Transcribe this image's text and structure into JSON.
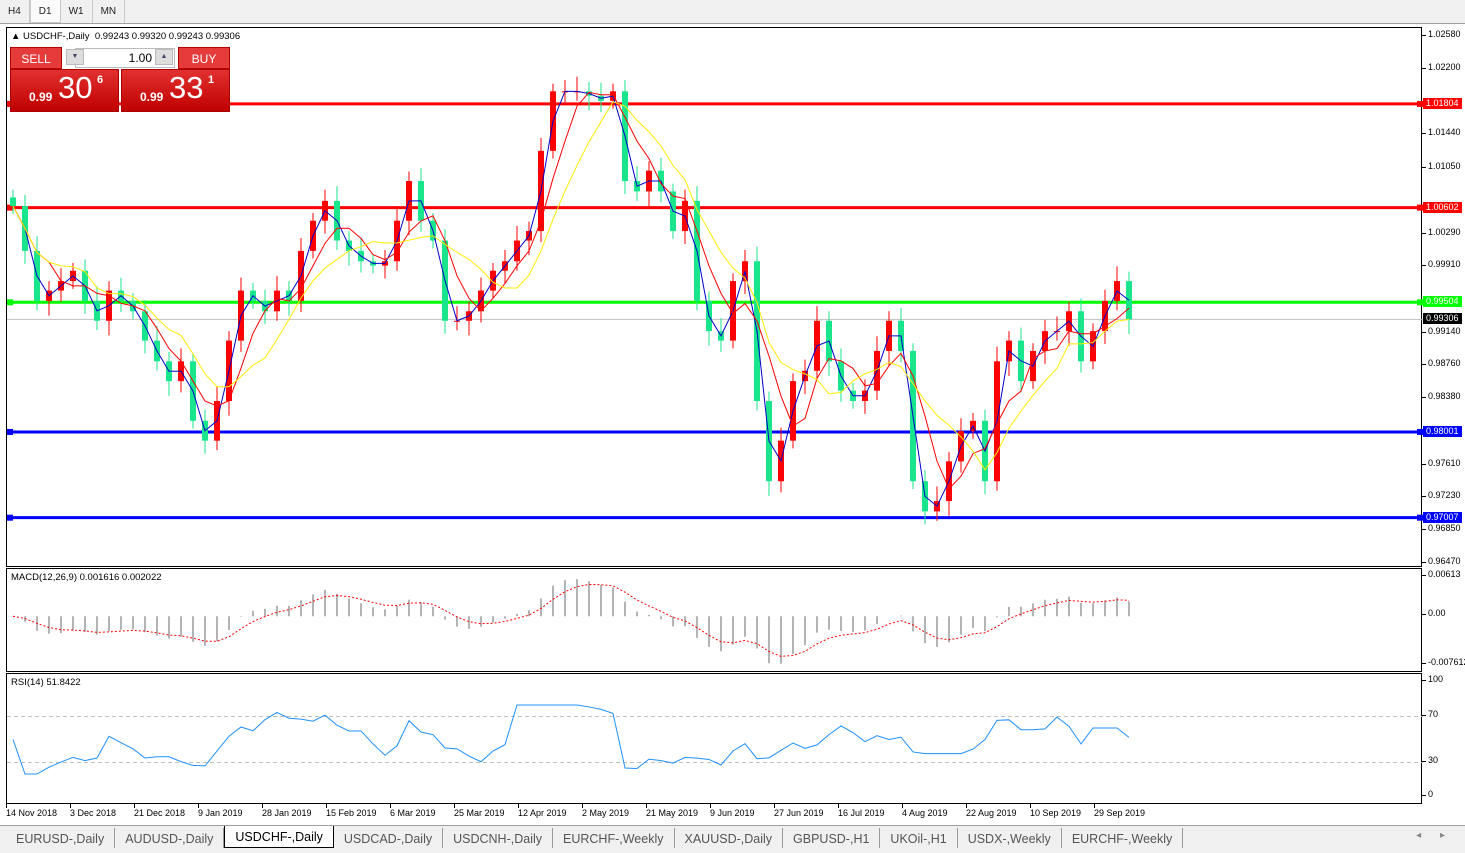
{
  "timeframes": [
    {
      "label": "H4"
    },
    {
      "label": "D1",
      "selected": true
    },
    {
      "label": "W1"
    },
    {
      "label": "MN"
    }
  ],
  "chart_header": {
    "symbol": "USDCHF-,Daily",
    "ohlc": "0.99243 0.99320 0.99243 0.99306"
  },
  "trade_panel": {
    "sell_label": "SELL",
    "buy_label": "BUY",
    "lot": "1.00",
    "sell_prefix": "0.99",
    "sell_big": "30",
    "sell_sup": "6",
    "buy_prefix": "0.99",
    "buy_big": "33",
    "buy_sup": "1"
  },
  "colors": {
    "up_candle": "#ff0000",
    "down_candle": "#19e68c",
    "ma_fast": "#0000cc",
    "ma_mid": "#ff0000",
    "ma_slow": "#ffee00",
    "macd_hist": "#b4b4b4",
    "macd_signal": "#ff0000",
    "rsi_line": "#1e90ff"
  },
  "chart_data": [
    {
      "type": "candlestick",
      "title": "USDCHF-,Daily",
      "ylim": [
        0.9647,
        1.0258
      ],
      "price_ticks": [
        "1.02580",
        "1.02200",
        "1.01440",
        "1.01050",
        "1.00290",
        "0.99910",
        "0.99140",
        "0.98760",
        "0.98380",
        "0.97610",
        "0.97230",
        "0.96850",
        "0.96470"
      ],
      "x_labels": [
        "14 Nov 2018",
        "3 Dec 2018",
        "21 Dec 2018",
        "9 Jan 2019",
        "28 Jan 2019",
        "15 Feb 2019",
        "6 Mar 2019",
        "25 Mar 2019",
        "12 Apr 2019",
        "2 May 2019",
        "21 May 2019",
        "9 Jun 2019",
        "27 Jun 2019",
        "16 Jul 2019",
        "4 Aug 2019",
        "22 Aug 2019",
        "10 Sep 2019",
        "29 Sep 2019"
      ],
      "closes": [
        1.0062,
        1.001,
        0.9952,
        0.9964,
        0.9975,
        0.9987,
        0.9952,
        0.9929,
        0.9964,
        0.9952,
        0.994,
        0.9906,
        0.9882,
        0.9859,
        0.9882,
        0.9813,
        0.979,
        0.9836,
        0.9906,
        0.9964,
        0.9952,
        0.994,
        0.9964,
        0.9952,
        1.001,
        1.0045,
        1.0068,
        1.0022,
        1.001,
        0.9998,
        0.9993,
        0.9998,
        1.0045,
        1.0091,
        1.0045,
        1.0022,
        0.9929,
        0.9929,
        0.994,
        0.9964,
        0.9987,
        0.9998,
        1.0022,
        1.0033,
        1.0126,
        1.0195,
        1.0195,
        1.0195,
        1.019,
        1.0184,
        1.0195,
        1.0091,
        1.0079,
        1.0103,
        1.0079,
        1.0033,
        1.0068,
        0.9952,
        0.9917,
        0.9906,
        0.9975,
        0.9998,
        0.9836,
        0.9743,
        0.979,
        0.9859,
        0.9871,
        0.9929,
        0.9882,
        0.9848,
        0.9836,
        0.9848,
        0.9894,
        0.9929,
        0.9894,
        0.9743,
        0.9708,
        0.972,
        0.9766,
        0.9801,
        0.9813,
        0.9743,
        0.9882,
        0.9906,
        0.9859,
        0.9894,
        0.9917,
        0.9917,
        0.994,
        0.9882,
        0.9917,
        0.9952,
        0.9975,
        0.99306
      ],
      "levels": [
        {
          "value": "1.01804",
          "color": "#ff0000"
        },
        {
          "value": "1.00602",
          "color": "#ff0000"
        },
        {
          "value": "0.99504",
          "color": "#00ff00"
        },
        {
          "value": "0.98001",
          "color": "#0000ff"
        },
        {
          "value": "0.97007",
          "color": "#0000ff"
        }
      ],
      "current_price": "0.99306"
    },
    {
      "type": "bar+line",
      "title": "MACD(12,26,9) 0.001616 0.002022",
      "ylim": [
        -0.007612,
        0.00613
      ],
      "ticks": [
        "0.00613",
        "0.00",
        "-0.007612"
      ]
    },
    {
      "type": "line",
      "title": "RSI(14) 51.8422",
      "ylim": [
        0,
        100
      ],
      "ticks": [
        "100",
        "70",
        "30",
        "0"
      ],
      "levels": [
        70,
        30
      ]
    }
  ],
  "tabs": [
    {
      "label": "EURUSD-,Daily"
    },
    {
      "label": "AUDUSD-,Daily"
    },
    {
      "label": "USDCHF-,Daily",
      "selected": true
    },
    {
      "label": "USDCAD-,Daily"
    },
    {
      "label": "USDCNH-,Daily"
    },
    {
      "label": "EURCHF-,Weekly"
    },
    {
      "label": "XAUUSD-,Daily"
    },
    {
      "label": "GBPUSD-,H1"
    },
    {
      "label": "UKOil-,H1"
    },
    {
      "label": "USDX-,Weekly"
    },
    {
      "label": "EURCHF-,Weekly"
    }
  ],
  "tab_nav": "◂ ▸"
}
